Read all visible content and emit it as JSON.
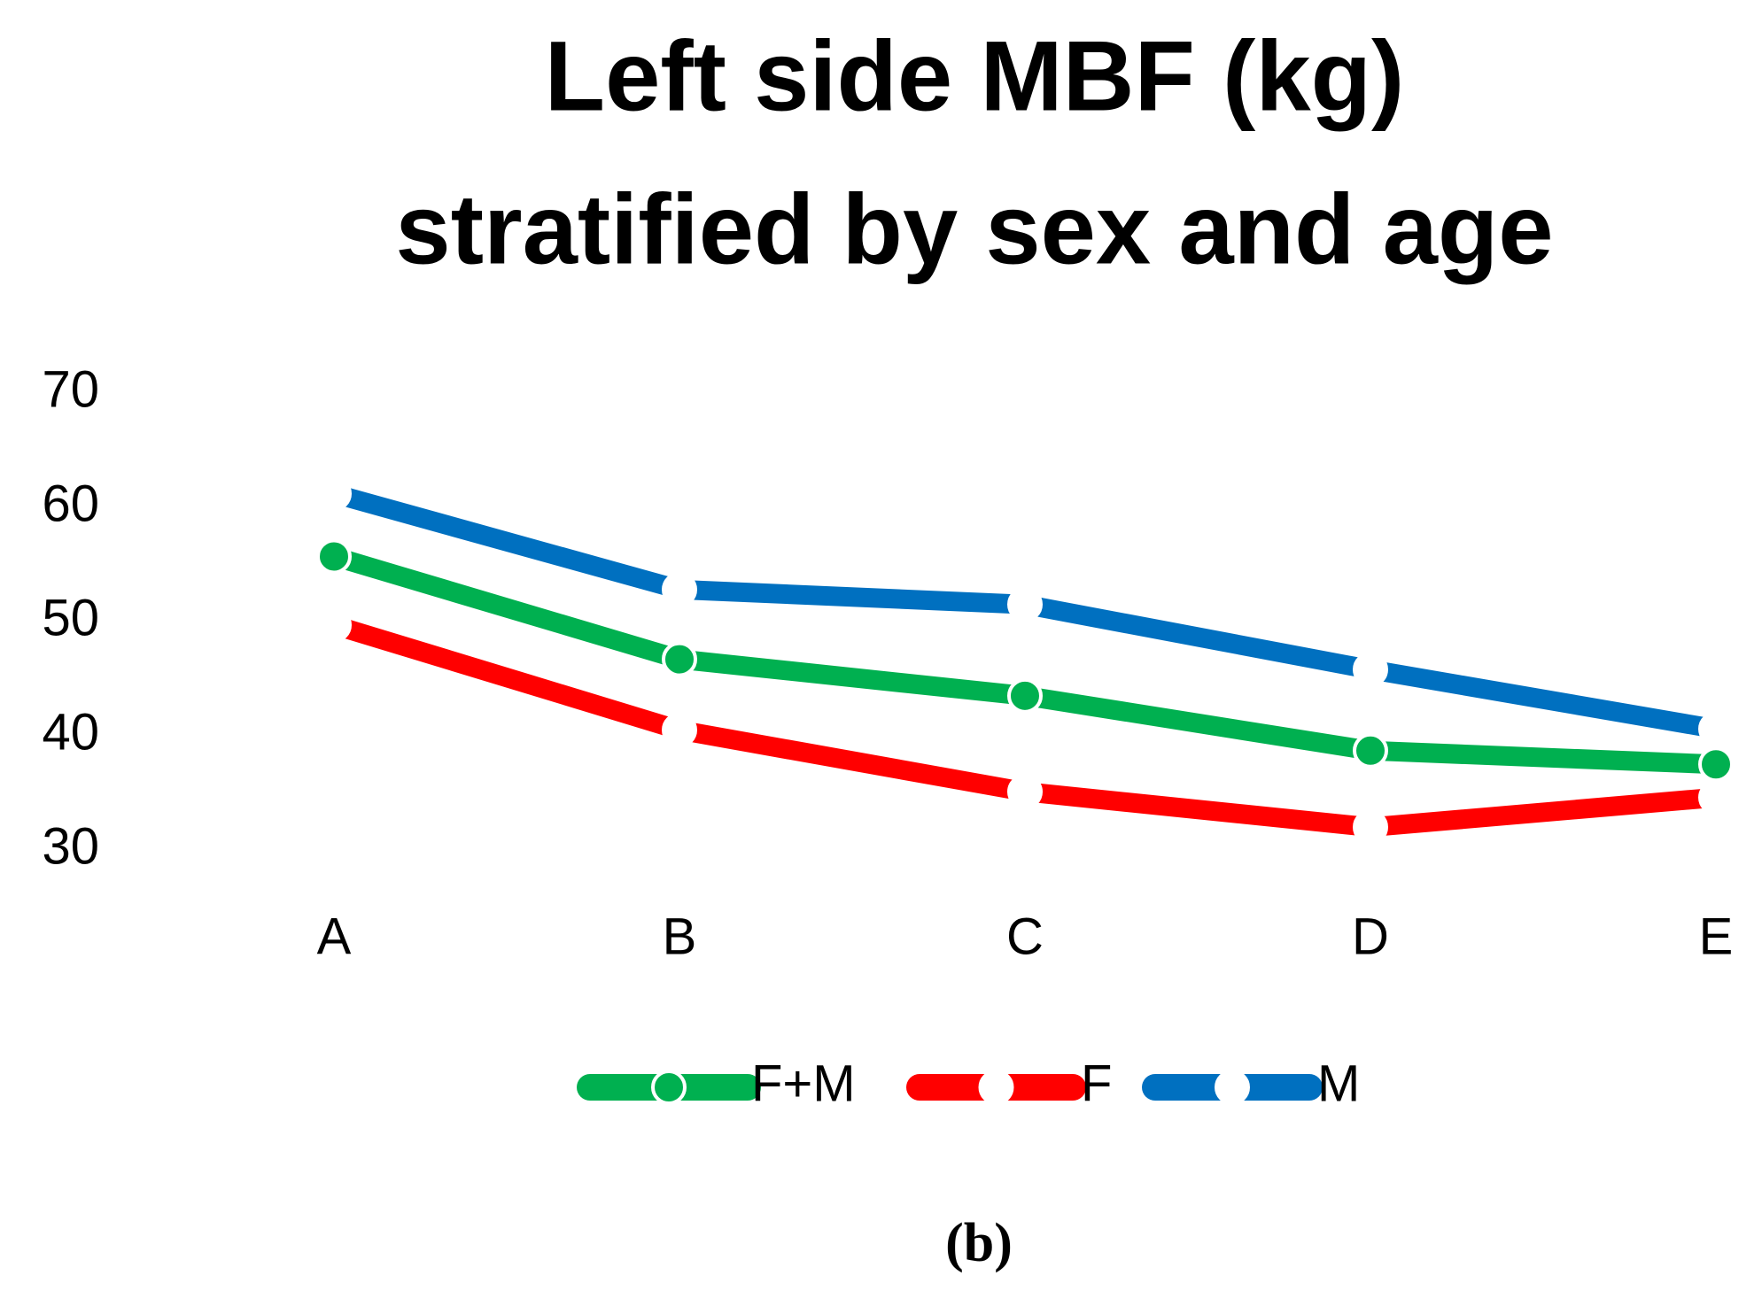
{
  "chart_data": {
    "type": "line",
    "title": [
      "Left side MBF (kg)",
      "stratified by sex and age"
    ],
    "categories": [
      "A",
      "B",
      "C",
      "D",
      "E"
    ],
    "series": [
      {
        "name": "F+M",
        "color": "#00b050",
        "marker_color": "#00b050",
        "values": [
          55.7,
          46.7,
          43.5,
          38.7,
          37.5
        ]
      },
      {
        "name": "F",
        "color": "#ff0000",
        "marker_color": "#ffffff",
        "values": [
          49.7,
          40.5,
          35.1,
          32,
          34.6
        ]
      },
      {
        "name": "M",
        "color": "#0070c0",
        "marker_color": "#ffffff",
        "values": [
          61.2,
          52.8,
          51.5,
          45.8,
          40.6
        ]
      }
    ],
    "ylim": [
      30,
      70
    ],
    "yticks": [
      30,
      40,
      50,
      60,
      70
    ],
    "grid": false,
    "legend": "bottom",
    "caption": "(b)"
  }
}
